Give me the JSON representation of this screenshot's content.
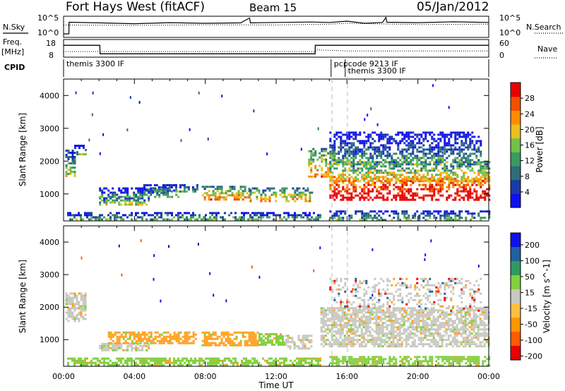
{
  "header": {
    "station": "Fort Hays West (fitACF)",
    "beam": "Beam 15",
    "date": "05/Jan/2012"
  },
  "chart_data": [
    {
      "type": "line",
      "panel": "noise",
      "left_label": "N.Sky",
      "right_label": "N.Search",
      "left_ticks": [
        "10^5",
        "10^0"
      ],
      "right_ticks": [
        "10^5",
        "10^0"
      ],
      "series": [
        {
          "name": "N.Sky",
          "style": "solid",
          "x": [
            0,
            0.3,
            0.31,
            2,
            4,
            6,
            8,
            10,
            10.5,
            10.55,
            12,
            14,
            15,
            16,
            17,
            18,
            18.2,
            18.25,
            20,
            22,
            24
          ],
          "y": [
            0.2,
            0.2,
            0.75,
            0.72,
            0.68,
            0.73,
            0.7,
            0.72,
            0.95,
            0.72,
            0.74,
            0.76,
            0.74,
            0.8,
            0.7,
            0.74,
            0.97,
            0.75,
            0.73,
            0.77,
            0.74
          ]
        },
        {
          "name": "N.Search",
          "style": "dotted",
          "x": [
            0,
            4,
            8,
            12,
            15,
            16,
            20,
            24
          ],
          "y": [
            0.62,
            0.6,
            0.63,
            0.62,
            0.66,
            0.7,
            0.64,
            0.66
          ]
        }
      ]
    },
    {
      "type": "line",
      "panel": "freq",
      "left_label": "Freq.",
      "left_unit": "[MHz]",
      "right_label": "Nave",
      "left_ticks": [
        "18",
        "8"
      ],
      "right_ticks": [
        "60",
        "0"
      ],
      "series": [
        {
          "name": "Freq.",
          "style": "solid",
          "x": [
            0,
            2.05,
            2.06,
            14.2,
            14.21,
            24
          ],
          "y": [
            15,
            15,
            10,
            10,
            15,
            15
          ]
        },
        {
          "name": "Nave",
          "style": "dotted",
          "x": [
            0,
            14.2,
            14.3,
            16,
            24
          ],
          "y": [
            20,
            20,
            26,
            22,
            22
          ]
        }
      ]
    },
    {
      "type": "table",
      "panel": "cpid",
      "label": "CPID",
      "entries": [
        {
          "start": 0,
          "text": "themis 3300 IF",
          "row": 0
        },
        {
          "start": 15.1,
          "text": "pcpcode 9213 IF",
          "row": 0
        },
        {
          "start": 15.9,
          "text": "themis 3300 IF",
          "row": 1
        }
      ]
    },
    {
      "type": "heatmap",
      "panel": "power",
      "ylabel": "Slant Range [km]",
      "ylim": [
        180,
        4500
      ],
      "xlim": [
        0,
        24
      ],
      "yticks": [
        1000,
        2000,
        3000,
        4000
      ],
      "colorbar": {
        "label": "Power [dB]",
        "range": [
          0,
          32
        ],
        "ticks": [
          4,
          8,
          12,
          16,
          20,
          24,
          28
        ],
        "colors": [
          "#1010ee",
          "#1a3aa8",
          "#2e6e78",
          "#3a9a62",
          "#72c048",
          "#e8c020",
          "#ff8c00",
          "#f05000",
          "#e80000"
        ]
      },
      "regions": [
        {
          "x0": 0.1,
          "x1": 0.6,
          "y0": 1550,
          "y1": 2350,
          "level": 0.35
        },
        {
          "x0": 0.6,
          "x1": 1.2,
          "y0": 2200,
          "y1": 2500,
          "level": 0.25
        },
        {
          "x0": 2.0,
          "x1": 4.8,
          "y0": 650,
          "y1": 900,
          "level": 0.45
        },
        {
          "x0": 2.0,
          "x1": 6.5,
          "y0": 900,
          "y1": 1200,
          "level": 0.2
        },
        {
          "x0": 4.5,
          "x1": 7.5,
          "y0": 1050,
          "y1": 1300,
          "level": 0.3
        },
        {
          "x0": 7.8,
          "x1": 10.5,
          "y0": 850,
          "y1": 1250,
          "level": 0.55
        },
        {
          "x0": 10.5,
          "x1": 14.0,
          "y0": 800,
          "y1": 1200,
          "level": 0.5
        },
        {
          "x0": 0.2,
          "x1": 14.5,
          "y0": 200,
          "y1": 450,
          "level": 0.3
        },
        {
          "x0": 13.8,
          "x1": 15.3,
          "y0": 1500,
          "y1": 2400,
          "level": 0.55
        },
        {
          "x0": 15.0,
          "x1": 24.0,
          "y0": 850,
          "y1": 1500,
          "level": 0.9
        },
        {
          "x0": 15.0,
          "x1": 24.0,
          "y0": 1400,
          "y1": 2000,
          "level": 0.5
        },
        {
          "x0": 15.0,
          "x1": 23.5,
          "y0": 1900,
          "y1": 2900,
          "level": 0.2
        },
        {
          "x0": 15.0,
          "x1": 24.0,
          "y0": 200,
          "y1": 500,
          "level": 0.3
        }
      ]
    },
    {
      "type": "heatmap",
      "panel": "velocity",
      "ylabel": "Slant Range [km]",
      "xlabel": "Time UT",
      "ylim": [
        180,
        4500
      ],
      "xlim": [
        0,
        24
      ],
      "yticks": [
        1000,
        2000,
        3000,
        4000
      ],
      "xticks": [
        "00:00",
        "04:00",
        "08:00",
        "12:00",
        "16:00",
        "20:00",
        "00:00"
      ],
      "colorbar": {
        "label": "Velocity [m s^-1]",
        "range": [
          -250,
          250
        ],
        "ticks": [
          200,
          100,
          50,
          15,
          -15,
          -50,
          -100,
          -200
        ],
        "colors": [
          "#e80000",
          "#ff5a00",
          "#ff9600",
          "#ffc040",
          "#c8c8c0",
          "#80d040",
          "#2f9a60",
          "#2060a0",
          "#1010ee"
        ]
      },
      "regions": [
        {
          "x0": 0.1,
          "x1": 1.2,
          "y0": 1550,
          "y1": 2450,
          "kind": "gray"
        },
        {
          "x0": 2.0,
          "x1": 4.8,
          "y0": 650,
          "y1": 900,
          "kind": "gray"
        },
        {
          "x0": 2.5,
          "x1": 7.5,
          "y0": 900,
          "y1": 1250,
          "kind": "orange"
        },
        {
          "x0": 7.8,
          "x1": 11.0,
          "y0": 850,
          "y1": 1250,
          "kind": "orange"
        },
        {
          "x0": 11.0,
          "x1": 12.5,
          "y0": 850,
          "y1": 1200,
          "kind": "green"
        },
        {
          "x0": 12.5,
          "x1": 14.0,
          "y0": 750,
          "y1": 1150,
          "kind": "gray"
        },
        {
          "x0": 0.2,
          "x1": 14.5,
          "y0": 200,
          "y1": 450,
          "kind": "green"
        },
        {
          "x0": 14.5,
          "x1": 24.0,
          "y0": 800,
          "y1": 2000,
          "kind": "gray"
        },
        {
          "x0": 15.0,
          "x1": 23.5,
          "y0": 1900,
          "y1": 2900,
          "kind": "grayspeckle"
        },
        {
          "x0": 15.0,
          "x1": 24.0,
          "y0": 200,
          "y1": 500,
          "kind": "green"
        }
      ]
    }
  ]
}
